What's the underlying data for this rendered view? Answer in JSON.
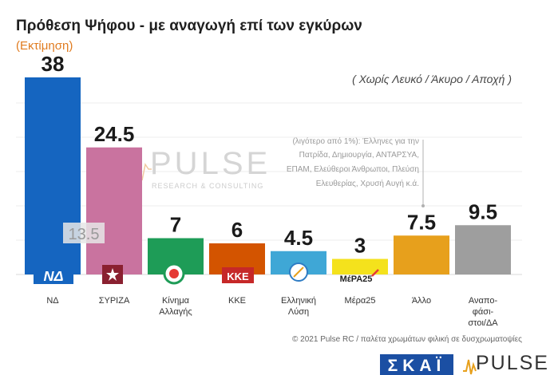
{
  "title": "Πρόθεση Ψήφου - με αναγωγή επί των εγκύρων",
  "subtitle": "(Εκτίμηση)",
  "note": "( Χωρίς Λευκό / Άκυρο / Αποχή )",
  "annotation_lines": [
    "(λιγότερο από 1%): Έλληνες για την",
    "Πατρίδα, Δημιουργία, ΑΝΤΑΡΣΥΑ,",
    "ΕΠΑΜ, Ελεύθεροι Άνθρωποι, Πλεύση",
    "Ελευθερίας, Χρυσή Αυγή κ.ά."
  ],
  "watermark": {
    "text": "PULSE",
    "subtext": "RESEARCH & CONSULTING"
  },
  "previous_value_label": "13.5",
  "party_logos": {
    "nd": "ΝΔ",
    "kke": "ΚΚΕ",
    "mera25": "ΜέΡΑ25"
  },
  "footer": "© 2021 Pulse RC  /  παλέτα χρωμάτων φιλική σε δυσχρωματοψίες",
  "logos": {
    "skai": "ΣΚΑΪ",
    "pulse": "PULSE"
  },
  "chart_data": {
    "type": "bar",
    "title": "Πρόθεση Ψήφου - με αναγωγή επί των εγκύρων",
    "subtitle": "(Εκτίμηση)",
    "categories": [
      "ΝΔ",
      "ΣΥΡΙΖΑ",
      "Κίνημα Αλλαγής",
      "ΚΚΕ",
      "Ελληνική Λύση",
      "Μέρα25",
      "Άλλο",
      "Αναποφάσιστοι/ΔΑ"
    ],
    "category_label_lines": [
      [
        "ΝΔ"
      ],
      [
        "ΣΥΡΙΖΑ"
      ],
      [
        "Κίνημα",
        "Αλλαγής"
      ],
      [
        "ΚΚΕ"
      ],
      [
        "Ελληνική",
        "Λύση"
      ],
      [
        "Μέρα25"
      ],
      [
        "Άλλο"
      ],
      [
        "Αναπο-",
        "φάσι-",
        "στοι/ΔΑ"
      ]
    ],
    "values": [
      38,
      24.5,
      7,
      6,
      4.5,
      3,
      7.5,
      9.5
    ],
    "value_labels": [
      "38",
      "24.5",
      "7",
      "6",
      "4.5",
      "3",
      "7.5",
      "9.5"
    ],
    "colors": [
      "#1565c0",
      "#c9739f",
      "#1e9c57",
      "#d35400",
      "#3fa7d6",
      "#f4e21c",
      "#e7a01c",
      "#9e9e9e"
    ],
    "ylim": [
      0,
      40
    ],
    "grid": true,
    "xlabel": "",
    "ylabel": ""
  }
}
